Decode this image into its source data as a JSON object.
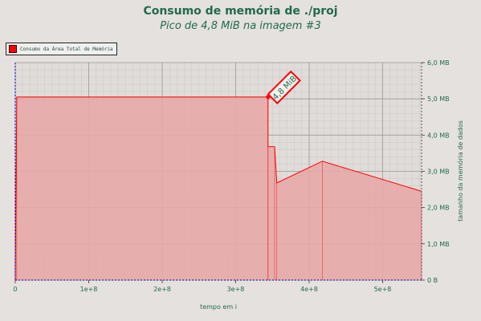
{
  "header": {
    "title": "Consumo de memória de ./proj",
    "subtitle": "Pico de 4,8 MiB na imagem #3"
  },
  "legend": {
    "label": "Consumo da Área Total de Memória"
  },
  "colors": {
    "line": "#ff0000",
    "fill": "#e8a9a9",
    "grid_major": "#9a9a9a",
    "grid_minor": "#c9c9c9",
    "plot_bg": "#e0dcd9",
    "text": "#1f6b4f",
    "axis_left": "#0000cc"
  },
  "chart_data": {
    "type": "area",
    "xlabel": "tempo em i",
    "ylabel": "tamanho da memória de dados",
    "xlim": [
      0,
      553000000
    ],
    "ylim": [
      0,
      6
    ],
    "x_tick_labels": [
      "0",
      "1e+8",
      "2e+8",
      "3e+8",
      "4e+8",
      "5e+8"
    ],
    "x_ticks": [
      0,
      100000000,
      200000000,
      300000000,
      400000000,
      500000000
    ],
    "y_tick_labels": [
      "0 B",
      "1,0 MB",
      "2,0 MB",
      "3,0 MB",
      "4,0 MB",
      "5,0 MB",
      "6,0 MB"
    ],
    "y_ticks": [
      0,
      1,
      2,
      3,
      4,
      5,
      6
    ],
    "grid": true,
    "series": [
      {
        "name": "Consumo da Área Total de Memória",
        "x": [
          0,
          2000000,
          344000000,
          344000000,
          353000000,
          356000000,
          418000000,
          553000000
        ],
        "y": [
          0,
          5.05,
          5.05,
          3.68,
          3.68,
          2.68,
          3.28,
          2.45
        ]
      }
    ],
    "peak_annotation": {
      "text": "4,8 MiB",
      "x": 344000000,
      "y": 5.05
    }
  }
}
